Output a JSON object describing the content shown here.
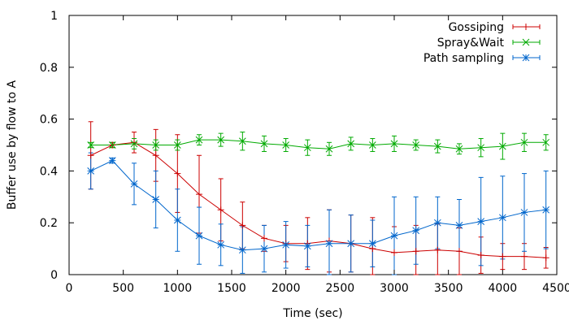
{
  "chart_data": {
    "type": "line",
    "xlabel": "Time (sec)",
    "ylabel": "Buffer use by flow to A",
    "xlim": [
      0,
      4500
    ],
    "ylim": [
      0,
      1
    ],
    "x_ticks": [
      0,
      500,
      1000,
      1500,
      2000,
      2500,
      3000,
      3500,
      4000,
      4500
    ],
    "x_tick_labels": [
      "0",
      "500",
      "1000",
      "1500",
      "2000",
      "2500",
      "3000",
      "3500",
      "4000",
      "4500"
    ],
    "y_ticks": [
      0,
      0.2,
      0.4,
      0.6,
      0.8,
      1
    ],
    "y_tick_labels": [
      "0",
      "0.2",
      "0.4",
      "0.6",
      "0.8",
      "1"
    ],
    "grid": false,
    "legend_position": "top-right",
    "x": [
      200,
      400,
      600,
      800,
      1000,
      1200,
      1400,
      1600,
      1800,
      2000,
      2200,
      2400,
      2600,
      2800,
      3000,
      3200,
      3400,
      3600,
      3800,
      4000,
      4200,
      4400
    ],
    "series": [
      {
        "name": "Gossiping",
        "color": "#cc0000",
        "marker": "plus",
        "values": [
          0.46,
          0.5,
          0.51,
          0.46,
          0.39,
          0.31,
          0.25,
          0.19,
          0.14,
          0.12,
          0.12,
          0.13,
          0.12,
          0.1,
          0.085,
          0.09,
          0.095,
          0.09,
          0.075,
          0.07,
          0.07,
          0.065
        ],
        "err": [
          0.13,
          0.01,
          0.04,
          0.1,
          0.15,
          0.15,
          0.12,
          0.09,
          0.05,
          0.07,
          0.1,
          0.12,
          0.11,
          0.12,
          0.1,
          0.1,
          0.1,
          0.09,
          0.07,
          0.05,
          0.05,
          0.04
        ]
      },
      {
        "name": "Spray&Wait",
        "color": "#00aa00",
        "marker": "x",
        "values": [
          0.5,
          0.5,
          0.505,
          0.5,
          0.5,
          0.52,
          0.52,
          0.515,
          0.505,
          0.5,
          0.49,
          0.485,
          0.505,
          0.5,
          0.505,
          0.5,
          0.495,
          0.485,
          0.49,
          0.495,
          0.51,
          0.51
        ],
        "err": [
          0.01,
          0.01,
          0.02,
          0.02,
          0.02,
          0.02,
          0.025,
          0.035,
          0.03,
          0.025,
          0.03,
          0.025,
          0.025,
          0.025,
          0.03,
          0.02,
          0.025,
          0.02,
          0.035,
          0.05,
          0.035,
          0.03
        ]
      },
      {
        "name": "Path sampling",
        "color": "#0066cc",
        "marker": "star",
        "values": [
          0.4,
          0.44,
          0.35,
          0.29,
          0.21,
          0.15,
          0.115,
          0.095,
          0.1,
          0.115,
          0.11,
          0.12,
          0.12,
          0.12,
          0.15,
          0.17,
          0.2,
          0.19,
          0.205,
          0.22,
          0.24,
          0.25
        ],
        "err": [
          0.07,
          0.01,
          0.08,
          0.11,
          0.12,
          0.11,
          0.08,
          0.09,
          0.09,
          0.09,
          0.08,
          0.13,
          0.11,
          0.09,
          0.15,
          0.13,
          0.1,
          0.1,
          0.17,
          0.16,
          0.15,
          0.15
        ]
      }
    ]
  }
}
